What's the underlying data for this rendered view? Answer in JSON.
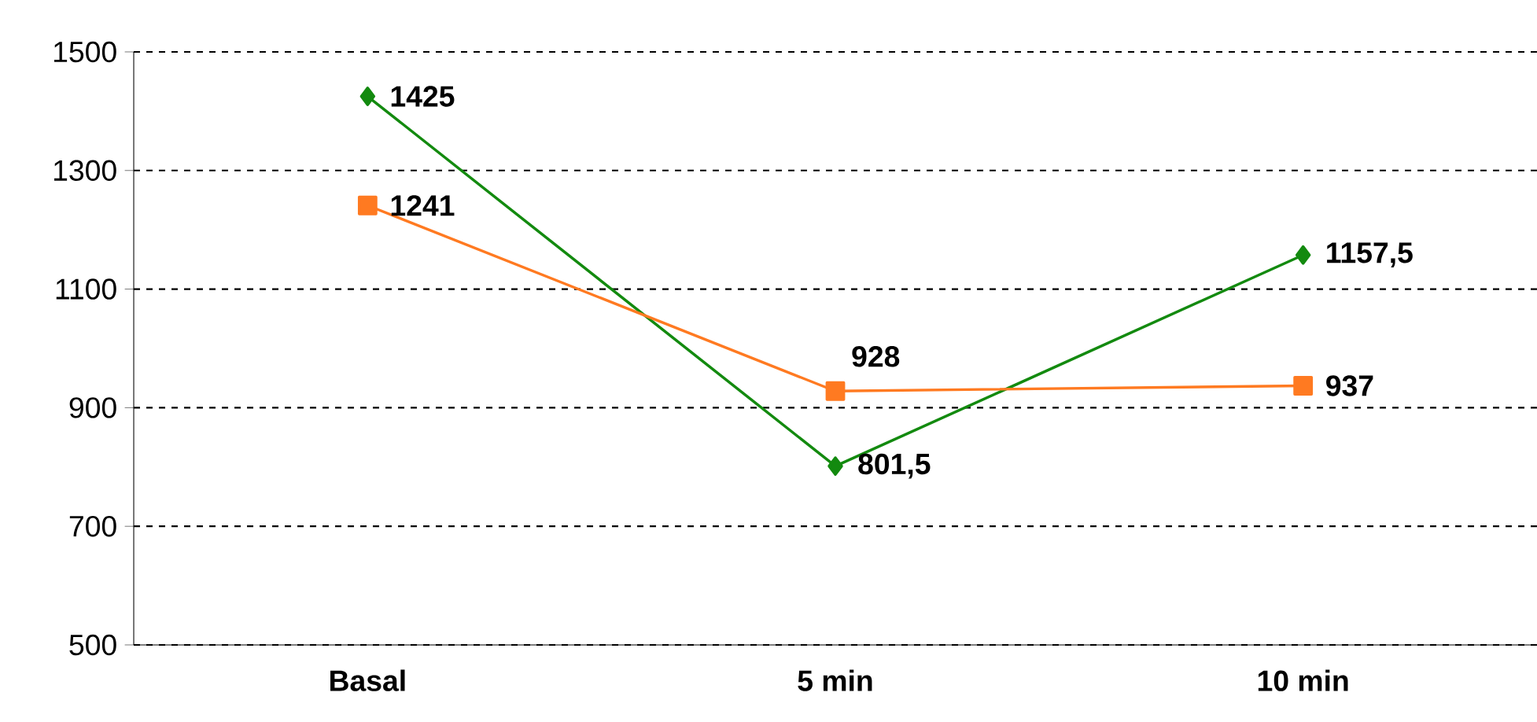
{
  "chart_data": {
    "type": "line",
    "categories": [
      "Basal",
      "5 min",
      "10 min"
    ],
    "series": [
      {
        "color": "#138a0f",
        "marker": "diamond",
        "values": [
          1425,
          801.5,
          1157.5
        ],
        "value_labels": [
          "1425",
          "801,5",
          "1157,5"
        ]
      },
      {
        "color": "#ff7a21",
        "marker": "square",
        "values": [
          1241,
          928,
          937
        ],
        "value_labels": [
          "1241",
          "928",
          "937"
        ]
      }
    ],
    "ylim": [
      500,
      1500
    ],
    "yticks": [
      500,
      700,
      900,
      1100,
      1300,
      1500
    ],
    "grid": "y"
  }
}
